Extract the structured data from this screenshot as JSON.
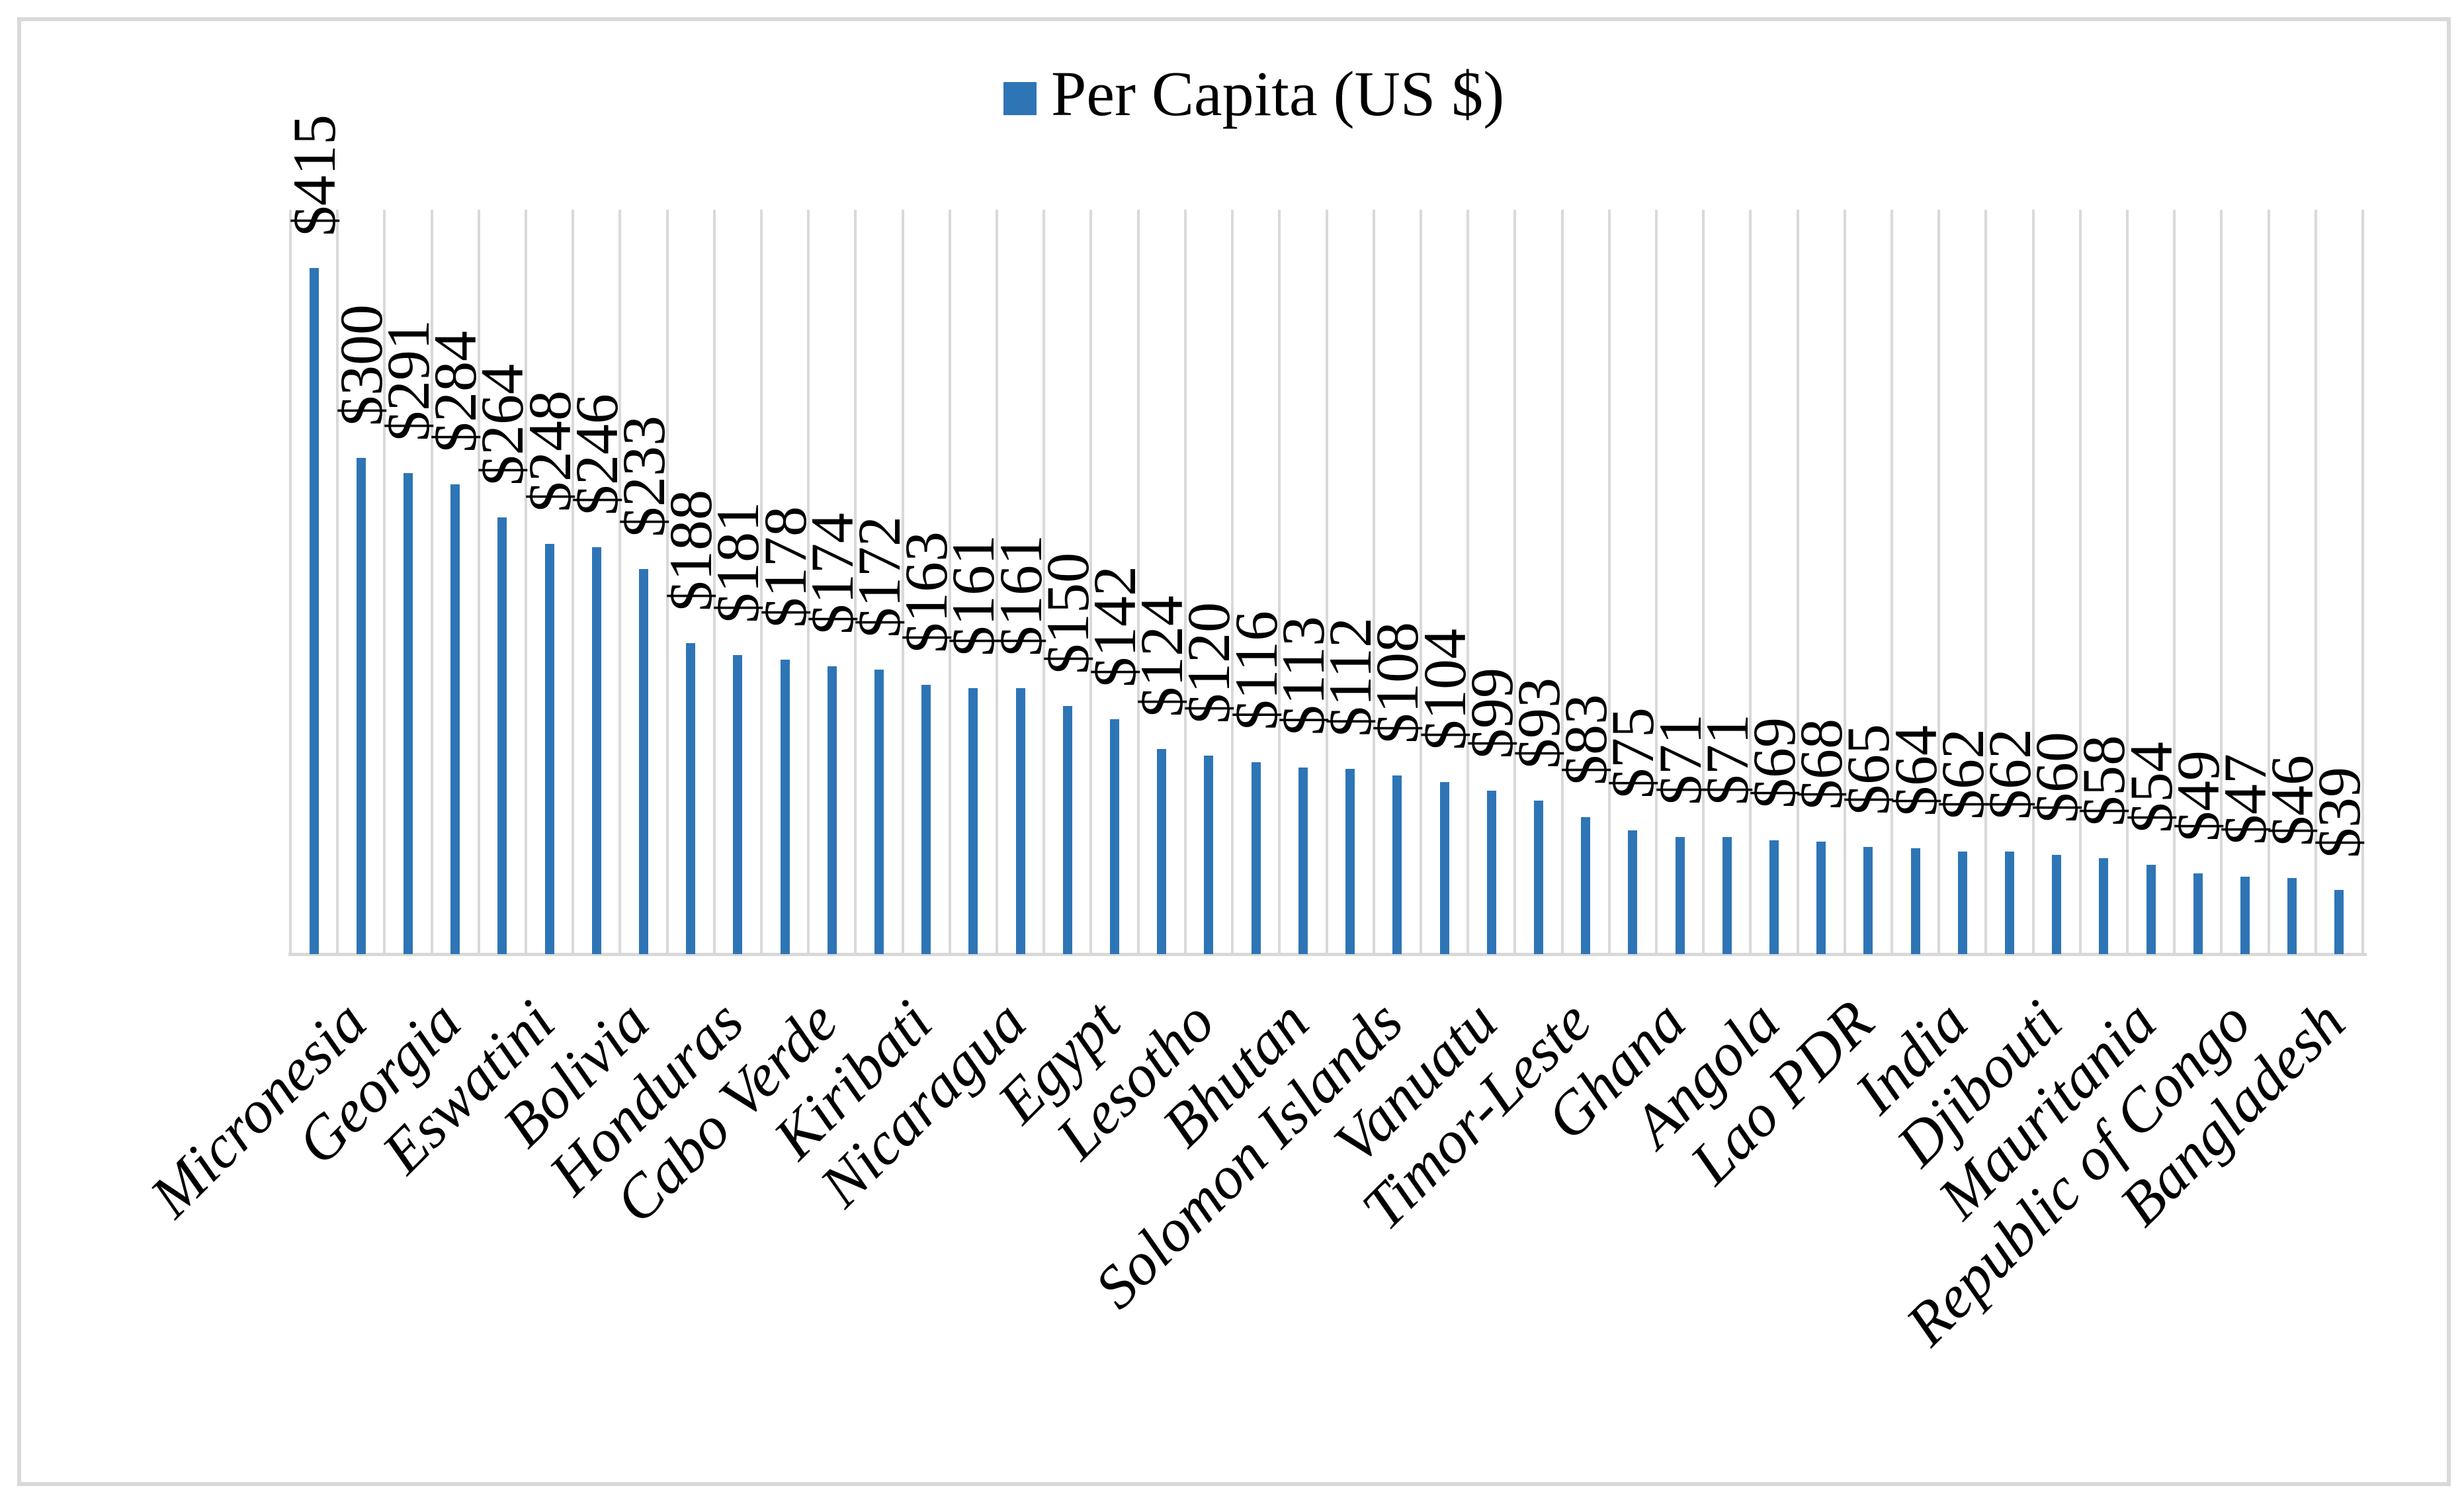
{
  "legend": {
    "label": "Per Capita (US $)"
  },
  "colors": {
    "bar": "#2E75B6",
    "gridline": "#D9D9D9",
    "axis_line": "#D9D9D9",
    "chart_border": "#D9D9D9",
    "text": "#000000",
    "background": "#FFFFFF"
  },
  "chart_data": {
    "type": "bar",
    "title": "",
    "legend_entries": [
      "Per Capita (US $)"
    ],
    "legend_position": "top-center",
    "value_prefix": "$",
    "ylim": [
      0,
      450
    ],
    "y_axis_visible": false,
    "grid": "vertical-category-gridlines",
    "category_label_interval": 2,
    "category_label_angle_deg": 45,
    "value_label_angle_deg": 90,
    "bars": [
      {
        "country": "Micronesia",
        "value": 415
      },
      {
        "country": "",
        "value": 300
      },
      {
        "country": "Georgia",
        "value": 291
      },
      {
        "country": "",
        "value": 284
      },
      {
        "country": "Eswatini",
        "value": 264
      },
      {
        "country": "",
        "value": 248
      },
      {
        "country": "Bolivia",
        "value": 246
      },
      {
        "country": "",
        "value": 233
      },
      {
        "country": "Honduras",
        "value": 188
      },
      {
        "country": "",
        "value": 181
      },
      {
        "country": "Cabo Verde",
        "value": 178
      },
      {
        "country": "",
        "value": 174
      },
      {
        "country": "Kiribati",
        "value": 172
      },
      {
        "country": "",
        "value": 163
      },
      {
        "country": "Nicaragua",
        "value": 161
      },
      {
        "country": "",
        "value": 161
      },
      {
        "country": "Egypt",
        "value": 150
      },
      {
        "country": "",
        "value": 142
      },
      {
        "country": "Lesotho",
        "value": 124
      },
      {
        "country": "",
        "value": 120
      },
      {
        "country": "Bhutan",
        "value": 116
      },
      {
        "country": "",
        "value": 113
      },
      {
        "country": "Solomon Islands",
        "value": 112
      },
      {
        "country": "",
        "value": 108
      },
      {
        "country": "Vanuatu",
        "value": 104
      },
      {
        "country": "",
        "value": 99
      },
      {
        "country": "Timor-Leste",
        "value": 93
      },
      {
        "country": "",
        "value": 83
      },
      {
        "country": "Ghana",
        "value": 75
      },
      {
        "country": "",
        "value": 71
      },
      {
        "country": "Angola",
        "value": 71
      },
      {
        "country": "",
        "value": 69
      },
      {
        "country": "Lao PDR",
        "value": 68
      },
      {
        "country": "",
        "value": 65
      },
      {
        "country": "India",
        "value": 64
      },
      {
        "country": "",
        "value": 62
      },
      {
        "country": "Djibouti",
        "value": 62
      },
      {
        "country": "",
        "value": 60
      },
      {
        "country": "Mauritania",
        "value": 58
      },
      {
        "country": "",
        "value": 54
      },
      {
        "country": "Republic of Congo",
        "value": 49
      },
      {
        "country": "",
        "value": 47
      },
      {
        "country": "Bangladesh",
        "value": 46
      },
      {
        "country": "",
        "value": 39
      }
    ]
  }
}
